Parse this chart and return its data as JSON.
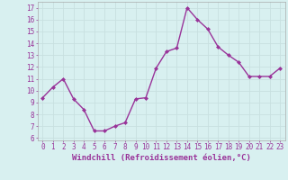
{
  "x": [
    0,
    1,
    2,
    3,
    4,
    5,
    6,
    7,
    8,
    9,
    10,
    11,
    12,
    13,
    14,
    15,
    16,
    17,
    18,
    19,
    20,
    21,
    22,
    23
  ],
  "y": [
    9.4,
    10.3,
    11.0,
    9.3,
    8.4,
    6.6,
    6.6,
    7.0,
    7.3,
    9.3,
    9.4,
    11.9,
    13.3,
    13.6,
    17.0,
    16.0,
    15.2,
    13.7,
    13.0,
    12.4,
    11.2,
    11.2,
    11.2,
    11.9
  ],
  "line_color": "#993399",
  "marker": "D",
  "marker_size": 2.0,
  "bg_color": "#d8f0f0",
  "grid_color": "#b8d8d8",
  "xlabel": "Windchill (Refroidissement éolien,°C)",
  "xlabel_color": "#993399",
  "tick_color": "#993399",
  "ylim": [
    5.8,
    17.5
  ],
  "xlim": [
    -0.5,
    23.5
  ],
  "yticks": [
    6,
    7,
    8,
    9,
    10,
    11,
    12,
    13,
    14,
    15,
    16,
    17
  ],
  "xticks": [
    0,
    1,
    2,
    3,
    4,
    5,
    6,
    7,
    8,
    9,
    10,
    11,
    12,
    13,
    14,
    15,
    16,
    17,
    18,
    19,
    20,
    21,
    22,
    23
  ],
  "tick_fontsize": 5.5,
  "xlabel_fontsize": 6.5,
  "linewidth": 1.0
}
